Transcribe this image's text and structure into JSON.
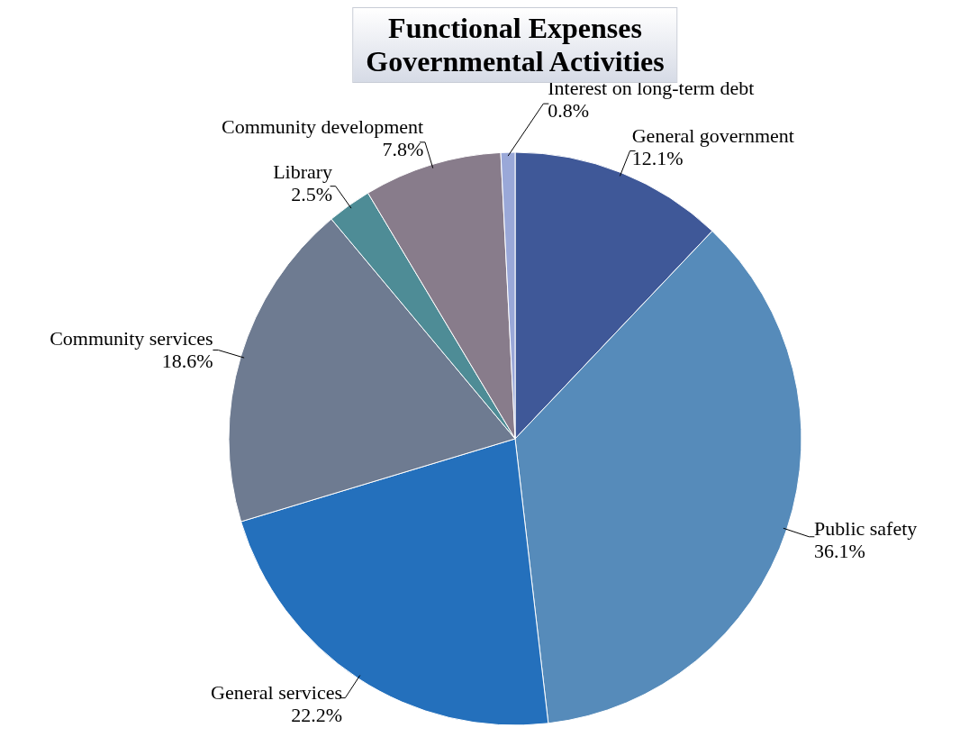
{
  "chart_data": {
    "type": "pie",
    "title": "Functional Expenses\nGovernmental Activities",
    "categories": [
      "General government",
      "Public safety",
      "General services",
      "Community services",
      "Library",
      "Community development",
      "Interest on long-term debt"
    ],
    "values": [
      12.1,
      36.1,
      22.2,
      18.6,
      2.5,
      7.8,
      0.8
    ],
    "colors": [
      "#3f5898",
      "#568bba",
      "#2470bc",
      "#6e7b91",
      "#4e8c96",
      "#887c8b",
      "#9aa8d8"
    ],
    "value_labels": [
      "12.1%",
      "36.1%",
      "22.2%",
      "18.6%",
      "2.5%",
      "7.8%",
      "0.8%"
    ]
  }
}
